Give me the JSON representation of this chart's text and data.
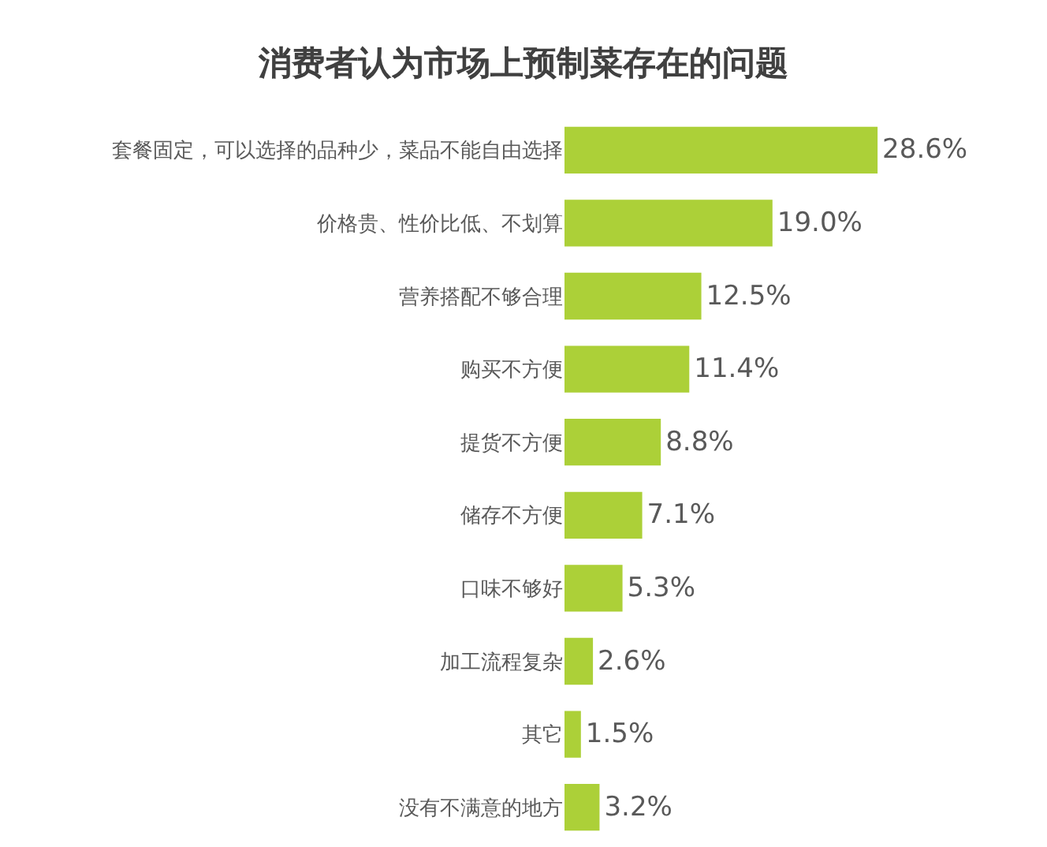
{
  "chart_data": {
    "type": "bar",
    "orientation": "horizontal",
    "title": "消费者认为市场上预制菜存在的问题",
    "categories": [
      "套餐固定，可以选择的品种少，菜品不能自由选择",
      "价格贵、性价比低、不划算",
      "营养搭配不够合理",
      "购买不方便",
      "提货不方便",
      "储存不方便",
      "口味不够好",
      "加工流程复杂",
      "其它",
      "没有不满意的地方"
    ],
    "values": [
      28.6,
      19.0,
      12.5,
      11.4,
      8.8,
      7.1,
      5.3,
      2.6,
      1.5,
      3.2
    ],
    "value_labels": [
      "28.6%",
      "19.0%",
      "12.5%",
      "11.4%",
      "8.8%",
      "7.1%",
      "5.3%",
      "2.6%",
      "1.5%",
      "3.2%"
    ],
    "color": "#acd038"
  }
}
